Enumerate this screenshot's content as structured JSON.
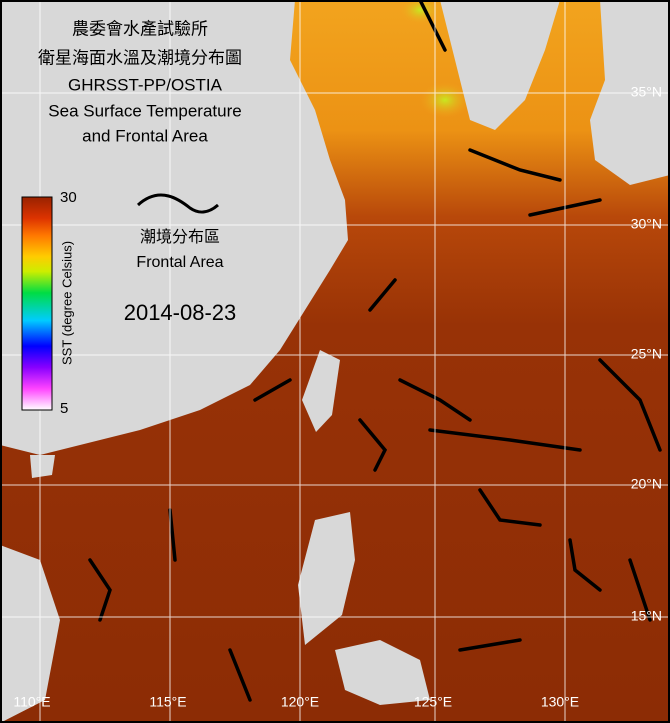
{
  "header": {
    "lines": [
      "農委會水產試驗所",
      "衛星海面水溫及潮境分布圖",
      "GHRSST-PP/OSTIA",
      "Sea Surface Temperature",
      "and Frontal Area"
    ]
  },
  "legend": {
    "front_labels": [
      "潮境分布區",
      "Frontal Area"
    ]
  },
  "date": "2014-08-23",
  "colorbar": {
    "label": "SST (degree Celsius)",
    "max": 30,
    "min": 5
  },
  "lat_labels": [
    "35°N",
    "30°N",
    "25°N",
    "20°N",
    "15°N"
  ],
  "lon_labels": [
    "110°E",
    "115°E",
    "120°E",
    "125°E",
    "130°E"
  ]
}
